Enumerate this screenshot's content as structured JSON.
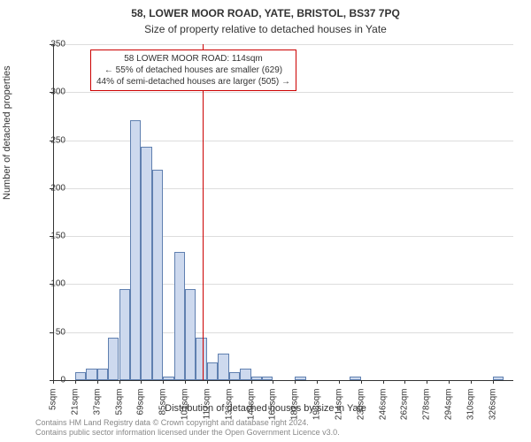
{
  "titles": {
    "main": "58, LOWER MOOR ROAD, YATE, BRISTOL, BS37 7PQ",
    "sub": "Size of property relative to detached houses in Yate"
  },
  "axes": {
    "ylabel": "Number of detached properties",
    "xlabel": "Distribution of detached houses by size in Yate",
    "ylim": [
      0,
      350
    ],
    "ytick_step": 50,
    "yticks": [
      0,
      50,
      100,
      150,
      200,
      250,
      300,
      350
    ],
    "xticks": [
      "5sqm",
      "21sqm",
      "37sqm",
      "53sqm",
      "69sqm",
      "85sqm",
      "101sqm",
      "117sqm",
      "133sqm",
      "149sqm",
      "165sqm",
      "182sqm",
      "198sqm",
      "214sqm",
      "230sqm",
      "246sqm",
      "262sqm",
      "278sqm",
      "294sqm",
      "310sqm",
      "326sqm"
    ]
  },
  "chart": {
    "type": "histogram",
    "bar_fill": "#cdd9ee",
    "bar_stroke": "#6080b0",
    "grid_color": "#dddddd",
    "background": "#ffffff",
    "values": [
      0,
      0,
      8,
      12,
      12,
      44,
      95,
      271,
      243,
      219,
      4,
      134,
      95,
      44,
      18,
      28,
      8,
      12,
      4,
      4,
      0,
      0,
      4,
      0,
      0,
      0,
      0,
      4,
      0,
      0,
      0,
      0,
      0,
      0,
      0,
      0,
      0,
      0,
      0,
      0,
      4,
      0
    ],
    "marker_x_value": 114,
    "vline_color": "#cc0000",
    "x_min": 5,
    "x_max": 340,
    "bin_width": 8
  },
  "annotation": {
    "line1": "58 LOWER MOOR ROAD: 114sqm",
    "line2": "← 55% of detached houses are smaller (629)",
    "line3": "44% of semi-detached houses are larger (505) →"
  },
  "credits": {
    "line1": "Contains HM Land Registry data © Crown copyright and database right 2024.",
    "line2": "Contains public sector information licensed under the Open Government Licence v3.0."
  }
}
